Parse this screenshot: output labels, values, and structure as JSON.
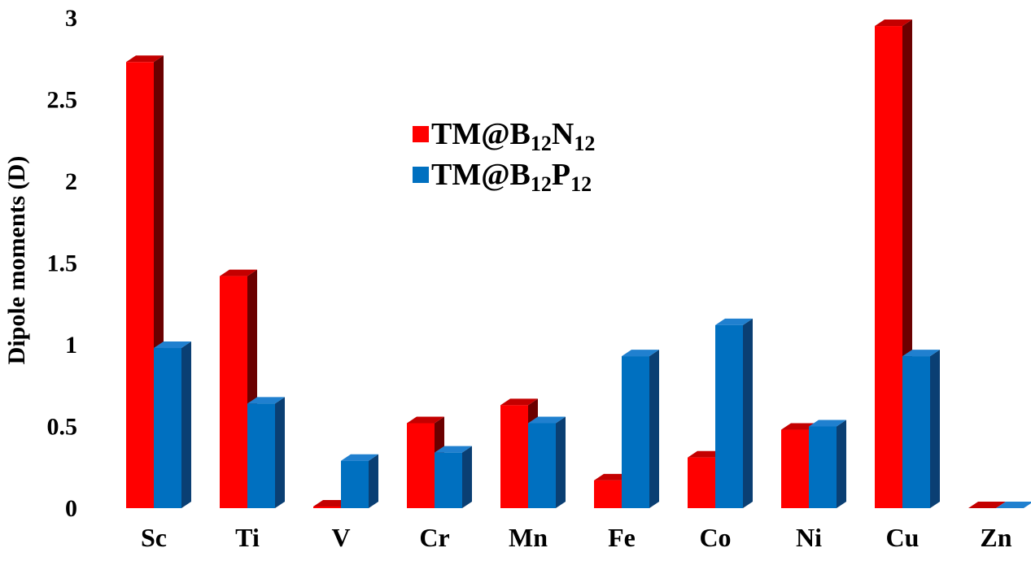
{
  "chart_data": {
    "type": "bar",
    "style": "3d-clustered-columns",
    "title": "",
    "xlabel": "",
    "ylabel": "Dipole moments (D)",
    "ylim": [
      0,
      3
    ],
    "yticks": [
      "0",
      "0.5",
      "1",
      "1.5",
      "2",
      "2.5",
      "3"
    ],
    "grid": false,
    "legend_position": "top-center",
    "categories": [
      "Sc",
      "Ti",
      "V",
      "Cr",
      "Mn",
      "Fe",
      "Co",
      "Ni",
      "Cu",
      "Zn"
    ],
    "series": [
      {
        "name_main": "TM@B",
        "name_sub1": "12",
        "name_mid": "N",
        "name_sub2": "12",
        "color": "#ff0000",
        "side_color": "#6b0000",
        "top_color": "#c40000",
        "values": [
          2.73,
          1.42,
          0.01,
          0.52,
          0.63,
          0.17,
          0.31,
          0.48,
          2.95,
          0.0
        ]
      },
      {
        "name_main": "TM@B",
        "name_sub1": "12",
        "name_mid": "P",
        "name_sub2": "12",
        "color": "#0070c0",
        "side_color": "#0a3f73",
        "top_color": "#2080cf",
        "values": [
          0.98,
          0.64,
          0.29,
          0.34,
          0.52,
          0.93,
          1.12,
          0.5,
          0.93,
          0.0
        ]
      }
    ]
  }
}
